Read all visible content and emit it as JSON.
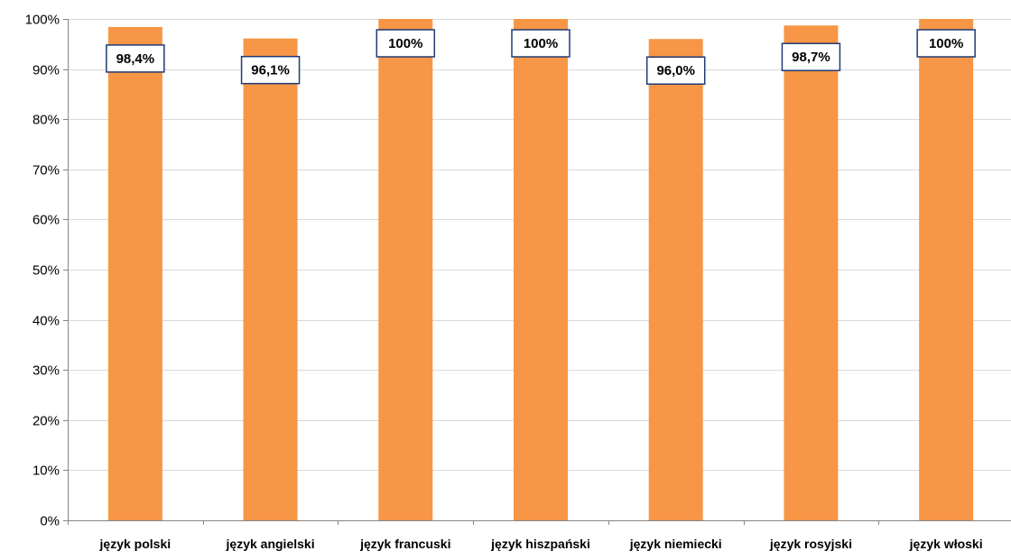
{
  "chart_data": {
    "type": "bar",
    "title": "",
    "xlabel": "",
    "ylabel": "",
    "categories": [
      "język polski",
      "język angielski",
      "język francuski",
      "język hiszpański",
      "język niemiecki",
      "język rosyjski",
      "język włoski"
    ],
    "values": [
      98.4,
      96.1,
      100,
      100,
      96.0,
      98.7,
      100
    ],
    "data_labels": [
      "98,4%",
      "96,1%",
      "100%",
      "100%",
      "96,0%",
      "98,7%",
      "100%"
    ],
    "ylim": [
      0,
      100
    ],
    "y_ticks": [
      0,
      10,
      20,
      30,
      40,
      50,
      60,
      70,
      80,
      90,
      100
    ],
    "y_tick_labels": [
      "0%",
      "10%",
      "20%",
      "30%",
      "40%",
      "50%",
      "60%",
      "70%",
      "80%",
      "90%",
      "100%"
    ],
    "grid": true,
    "legend": "none",
    "colors": {
      "bar": "#f79646",
      "label_border": "#1f3b73",
      "gridline": "#d9d9d9",
      "axis": "#868686"
    }
  }
}
